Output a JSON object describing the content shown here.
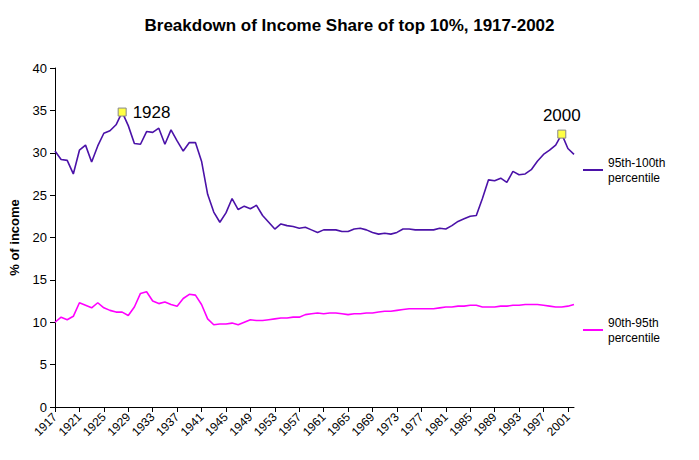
{
  "chart_data": {
    "type": "line",
    "title": "Breakdown of Income Share of top 10%, 1917-2002",
    "y_label": "% of income",
    "x": [
      1917,
      1918,
      1919,
      1920,
      1921,
      1922,
      1923,
      1924,
      1925,
      1926,
      1927,
      1928,
      1929,
      1930,
      1931,
      1932,
      1933,
      1934,
      1935,
      1936,
      1937,
      1938,
      1939,
      1940,
      1941,
      1942,
      1943,
      1944,
      1945,
      1946,
      1947,
      1948,
      1949,
      1950,
      1951,
      1952,
      1953,
      1954,
      1955,
      1956,
      1957,
      1958,
      1959,
      1960,
      1961,
      1962,
      1963,
      1964,
      1965,
      1966,
      1967,
      1968,
      1969,
      1970,
      1971,
      1972,
      1973,
      1974,
      1975,
      1976,
      1977,
      1978,
      1979,
      1980,
      1981,
      1982,
      1983,
      1984,
      1985,
      1986,
      1987,
      1988,
      1989,
      1990,
      1991,
      1992,
      1993,
      1994,
      1995,
      1996,
      1997,
      1998,
      1999,
      2000,
      2001,
      2002
    ],
    "series": [
      {
        "name": "95th-100th percentile",
        "color": "#4b12a8",
        "values": [
          30.2,
          29.2,
          29.1,
          27.5,
          30.3,
          30.9,
          28.9,
          30.8,
          32.3,
          32.6,
          33.3,
          34.8,
          33.2,
          31.1,
          31.0,
          32.5,
          32.4,
          32.9,
          31.0,
          32.7,
          31.4,
          30.2,
          31.2,
          31.2,
          29.0,
          25.1,
          23.0,
          21.8,
          22.9,
          24.6,
          23.3,
          23.7,
          23.4,
          23.8,
          22.6,
          21.8,
          21.0,
          21.6,
          21.4,
          21.3,
          21.1,
          21.2,
          20.9,
          20.6,
          20.9,
          20.9,
          20.9,
          20.7,
          20.7,
          21.0,
          21.1,
          20.9,
          20.6,
          20.4,
          20.5,
          20.4,
          20.6,
          21.0,
          21.0,
          20.9,
          20.9,
          20.9,
          20.9,
          21.1,
          21.0,
          21.4,
          21.9,
          22.2,
          22.5,
          22.6,
          24.6,
          26.8,
          26.7,
          27.0,
          26.5,
          27.8,
          27.4,
          27.5,
          28.0,
          29.0,
          29.8,
          30.3,
          30.9,
          32.2,
          30.5,
          29.8
        ]
      },
      {
        "name": "90th-95th percentile",
        "color": "#ff00ff",
        "values": [
          10.0,
          10.6,
          10.3,
          10.7,
          12.3,
          12.0,
          11.7,
          12.3,
          11.7,
          11.4,
          11.2,
          11.2,
          10.8,
          11.8,
          13.4,
          13.6,
          12.5,
          12.2,
          12.4,
          12.1,
          11.9,
          12.8,
          13.3,
          13.2,
          12.1,
          10.4,
          9.7,
          9.8,
          9.8,
          9.9,
          9.7,
          10.0,
          10.3,
          10.2,
          10.2,
          10.3,
          10.4,
          10.5,
          10.5,
          10.6,
          10.6,
          10.9,
          11.0,
          11.1,
          11.0,
          11.1,
          11.1,
          11.0,
          10.9,
          11.0,
          11.0,
          11.1,
          11.1,
          11.2,
          11.3,
          11.3,
          11.4,
          11.5,
          11.6,
          11.6,
          11.6,
          11.6,
          11.6,
          11.7,
          11.8,
          11.8,
          11.9,
          11.9,
          12.0,
          12.0,
          11.8,
          11.8,
          11.8,
          11.9,
          11.9,
          12.0,
          12.0,
          12.1,
          12.1,
          12.1,
          12.0,
          11.9,
          11.8,
          11.8,
          11.9,
          12.1
        ]
      }
    ],
    "annotations": [
      {
        "text": "1928",
        "x": 1928,
        "y": 34.8
      },
      {
        "text": "2000",
        "x": 2000,
        "y": 32.2
      }
    ],
    "xlim": [
      1917,
      2002
    ],
    "xticks": [
      1917,
      1921,
      1925,
      1929,
      1933,
      1937,
      1941,
      1945,
      1949,
      1953,
      1957,
      1961,
      1965,
      1969,
      1973,
      1977,
      1981,
      1985,
      1989,
      1993,
      1997,
      2001
    ],
    "ylim": [
      0,
      40
    ],
    "yticks": [
      0,
      5,
      10,
      15,
      20,
      25,
      30,
      35,
      40
    ],
    "grid": false,
    "legend": "right"
  }
}
